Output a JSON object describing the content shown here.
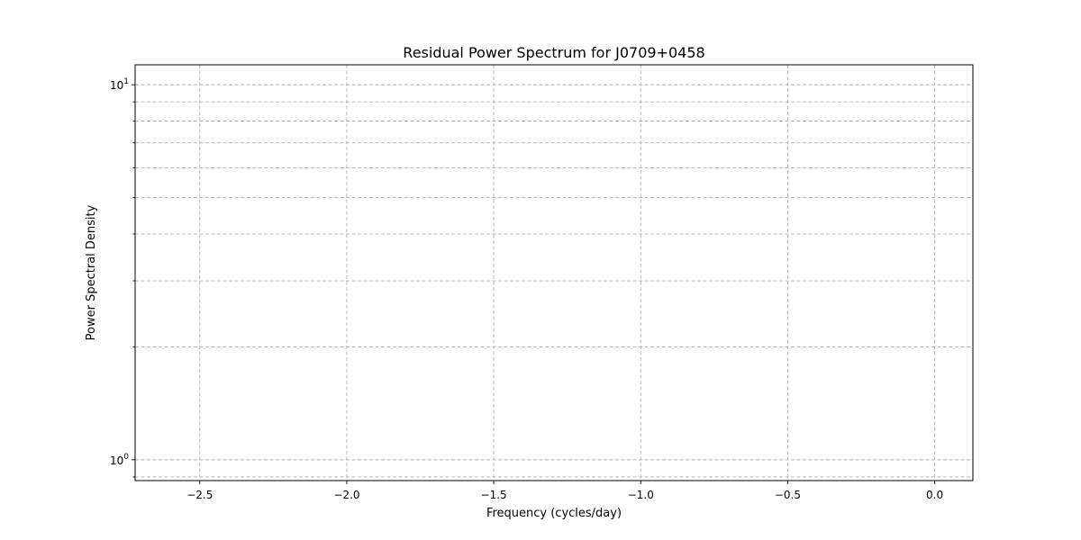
{
  "chart_data": {
    "type": "line",
    "title": "Residual Power Spectrum for J0709+0458",
    "xlabel": "Frequency (cycles/day)",
    "ylabel": "Power Spectral Density",
    "yscale": "log",
    "xlim": [
      -2.72,
      0.13
    ],
    "ylim": [
      0.88,
      11.3
    ],
    "xticks": [
      {
        "value": -2.5,
        "label": "−2.5"
      },
      {
        "value": -2.0,
        "label": "−2.0"
      },
      {
        "value": -1.5,
        "label": "−1.5"
      },
      {
        "value": -1.0,
        "label": "−1.0"
      },
      {
        "value": -0.5,
        "label": "−0.5"
      },
      {
        "value": 0.0,
        "label": "0.0"
      }
    ],
    "yticks_major": [
      {
        "value": 1,
        "base": "10",
        "exp": "0"
      },
      {
        "value": 10,
        "base": "10",
        "exp": "1"
      }
    ],
    "yticks_minor": [
      0.9,
      2,
      3,
      4,
      5,
      6,
      7,
      8,
      9
    ],
    "grid": true,
    "series": []
  }
}
